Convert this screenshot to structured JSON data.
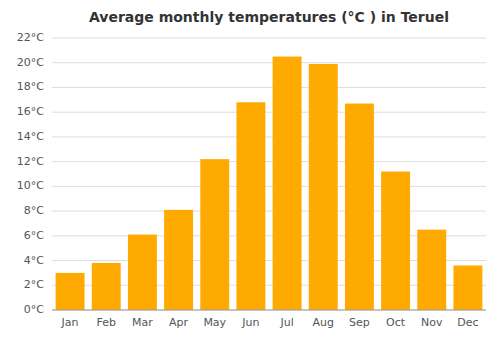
{
  "chart_data": {
    "type": "bar",
    "title": "Average monthly temperatures (°C ) in Teruel",
    "categories": [
      "Jan",
      "Feb",
      "Mar",
      "Apr",
      "May",
      "Jun",
      "Jul",
      "Aug",
      "Sep",
      "Oct",
      "Nov",
      "Dec"
    ],
    "values": [
      3.0,
      3.8,
      6.1,
      8.1,
      12.2,
      16.8,
      20.5,
      19.9,
      16.7,
      11.2,
      6.5,
      3.6
    ],
    "color": "#FFAA00",
    "ylim": [
      0,
      22
    ],
    "yticks": [
      {
        "value": 0,
        "label": "0°C"
      },
      {
        "value": 2,
        "label": "2°C"
      },
      {
        "value": 4,
        "label": "4°C"
      },
      {
        "value": 6,
        "label": "6°C"
      },
      {
        "value": 8,
        "label": "8°C"
      },
      {
        "value": 10,
        "label": "10°C"
      },
      {
        "value": 12,
        "label": "12°C"
      },
      {
        "value": 14,
        "label": "14°C"
      },
      {
        "value": 16,
        "label": "16°C"
      },
      {
        "value": 18,
        "label": "18°C"
      },
      {
        "value": 20,
        "label": "20°C"
      },
      {
        "value": 22,
        "label": "22°C"
      }
    ],
    "grid": true
  }
}
